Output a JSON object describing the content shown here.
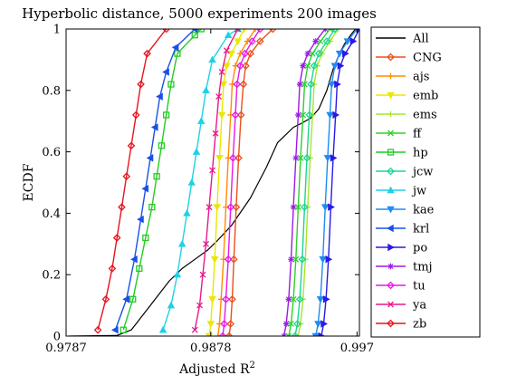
{
  "chart_data": {
    "type": "line",
    "title": "Hyperbolic distance, 5000 experiments 200 images",
    "xlabel_main": "Adjusted R",
    "xlabel_sup": "2",
    "ylabel": "ECDF",
    "xlim": [
      0.9787,
      0.99715
    ],
    "ylim": [
      0,
      1
    ],
    "grid": false,
    "legend_position": "right",
    "x_ticks": [
      {
        "value": 0.9787,
        "label": "0.9787"
      },
      {
        "value": 0.9878,
        "label": "0.9878"
      },
      {
        "value": 0.997,
        "label": "0.997"
      }
    ],
    "y_ticks": [
      {
        "value": 0,
        "label": "0"
      },
      {
        "value": 0.2,
        "label": "0.2"
      },
      {
        "value": 0.4,
        "label": "0.4"
      },
      {
        "value": 0.6,
        "label": "0.6"
      },
      {
        "value": 0.8,
        "label": "0.8"
      },
      {
        "value": 1,
        "label": "1"
      }
    ],
    "series": [
      {
        "name": "All",
        "color": "#000000",
        "marker": "none",
        "points": [
          [
            0.9789,
            0
          ],
          [
            0.9819,
            0.002
          ],
          [
            0.9828,
            0.02
          ],
          [
            0.9834,
            0.06
          ],
          [
            0.984,
            0.1
          ],
          [
            0.9846,
            0.14
          ],
          [
            0.9852,
            0.18
          ],
          [
            0.986,
            0.22
          ],
          [
            0.9868,
            0.25
          ],
          [
            0.9876,
            0.28
          ],
          [
            0.9882,
            0.31
          ],
          [
            0.9891,
            0.36
          ],
          [
            0.9903,
            0.45
          ],
          [
            0.9913,
            0.55
          ],
          [
            0.992,
            0.63
          ],
          [
            0.9926,
            0.66
          ],
          [
            0.993,
            0.68
          ],
          [
            0.9934,
            0.69
          ],
          [
            0.9941,
            0.71
          ],
          [
            0.9946,
            0.74
          ],
          [
            0.9951,
            0.8
          ],
          [
            0.9955,
            0.87
          ],
          [
            0.9959,
            0.92
          ],
          [
            0.9962,
            0.95
          ],
          [
            0.9966,
            0.98
          ],
          [
            0.9969,
            1.0
          ]
        ]
      },
      {
        "name": "CNG",
        "color": "#e8501c",
        "marker": "diamond",
        "points": [
          [
            0.98895,
            0
          ],
          [
            0.98905,
            0.04
          ],
          [
            0.98915,
            0.12
          ],
          [
            0.98925,
            0.25
          ],
          [
            0.9894,
            0.42
          ],
          [
            0.98955,
            0.58
          ],
          [
            0.9897,
            0.72
          ],
          [
            0.98985,
            0.82
          ],
          [
            0.99,
            0.88
          ],
          [
            0.9903,
            0.92
          ],
          [
            0.9909,
            0.96
          ],
          [
            0.9917,
            1.0
          ]
        ]
      },
      {
        "name": "ajs",
        "color": "#ff8c00",
        "marker": "plus",
        "points": [
          [
            0.98825,
            0
          ],
          [
            0.98835,
            0.04
          ],
          [
            0.98845,
            0.12
          ],
          [
            0.9886,
            0.25
          ],
          [
            0.98875,
            0.42
          ],
          [
            0.9889,
            0.58
          ],
          [
            0.98905,
            0.72
          ],
          [
            0.98915,
            0.82
          ],
          [
            0.98935,
            0.88
          ],
          [
            0.98965,
            0.92
          ],
          [
            0.9901,
            0.96
          ],
          [
            0.9906,
            1.0
          ]
        ]
      },
      {
        "name": "emb",
        "color": "#e8e800",
        "marker": "triangle-down",
        "points": [
          [
            0.9877,
            0
          ],
          [
            0.9878,
            0.04
          ],
          [
            0.9879,
            0.12
          ],
          [
            0.98805,
            0.25
          ],
          [
            0.9882,
            0.42
          ],
          [
            0.98835,
            0.58
          ],
          [
            0.9885,
            0.72
          ],
          [
            0.9886,
            0.82
          ],
          [
            0.9888,
            0.88
          ],
          [
            0.9891,
            0.92
          ],
          [
            0.9895,
            0.96
          ],
          [
            0.9899,
            1.0
          ]
        ]
      },
      {
        "name": "ems",
        "color": "#a8e62c",
        "marker": "plus",
        "points": [
          [
            0.9933,
            0
          ],
          [
            0.99345,
            0.04
          ],
          [
            0.9936,
            0.12
          ],
          [
            0.99375,
            0.25
          ],
          [
            0.9939,
            0.42
          ],
          [
            0.99405,
            0.58
          ],
          [
            0.9942,
            0.72
          ],
          [
            0.9943,
            0.82
          ],
          [
            0.9945,
            0.88
          ],
          [
            0.9948,
            0.92
          ],
          [
            0.9953,
            0.96
          ],
          [
            0.9958,
            1.0
          ]
        ]
      },
      {
        "name": "ff",
        "color": "#2ad22a",
        "marker": "x",
        "points": [
          [
            0.9927,
            0
          ],
          [
            0.99285,
            0.04
          ],
          [
            0.993,
            0.12
          ],
          [
            0.99315,
            0.25
          ],
          [
            0.9933,
            0.42
          ],
          [
            0.99345,
            0.58
          ],
          [
            0.9936,
            0.72
          ],
          [
            0.9937,
            0.82
          ],
          [
            0.9939,
            0.88
          ],
          [
            0.9942,
            0.92
          ],
          [
            0.9947,
            0.96
          ],
          [
            0.9953,
            1.0
          ]
        ]
      },
      {
        "name": "hp",
        "color": "#22cc22",
        "marker": "square",
        "points": [
          [
            0.9823,
            0.02
          ],
          [
            0.9829,
            0.12
          ],
          [
            0.9833,
            0.22
          ],
          [
            0.9837,
            0.32
          ],
          [
            0.9841,
            0.42
          ],
          [
            0.9844,
            0.52
          ],
          [
            0.9847,
            0.62
          ],
          [
            0.985,
            0.72
          ],
          [
            0.9853,
            0.82
          ],
          [
            0.9857,
            0.92
          ],
          [
            0.9868,
            0.98
          ],
          [
            0.9872,
            1.0
          ]
        ]
      },
      {
        "name": "jcw",
        "color": "#1ad690",
        "marker": "diamond",
        "points": [
          [
            0.9931,
            0
          ],
          [
            0.99325,
            0.04
          ],
          [
            0.9934,
            0.12
          ],
          [
            0.99355,
            0.25
          ],
          [
            0.9937,
            0.42
          ],
          [
            0.99385,
            0.58
          ],
          [
            0.994,
            0.72
          ],
          [
            0.9941,
            0.82
          ],
          [
            0.9943,
            0.88
          ],
          [
            0.9946,
            0.92
          ],
          [
            0.9951,
            0.96
          ],
          [
            0.9956,
            1.0
          ]
        ]
      },
      {
        "name": "jw",
        "color": "#1ed2e6",
        "marker": "triangle-up",
        "points": [
          [
            0.9848,
            0.02
          ],
          [
            0.9853,
            0.1
          ],
          [
            0.9857,
            0.2
          ],
          [
            0.986,
            0.3
          ],
          [
            0.9863,
            0.4
          ],
          [
            0.9866,
            0.5
          ],
          [
            0.9869,
            0.6
          ],
          [
            0.9872,
            0.7
          ],
          [
            0.9875,
            0.8
          ],
          [
            0.9879,
            0.9
          ],
          [
            0.9889,
            0.98
          ],
          [
            0.9895,
            1.0
          ]
        ]
      },
      {
        "name": "kae",
        "color": "#1e8cf0",
        "marker": "triangle-down",
        "points": [
          [
            0.9944,
            0
          ],
          [
            0.99455,
            0.04
          ],
          [
            0.9947,
            0.12
          ],
          [
            0.99485,
            0.25
          ],
          [
            0.995,
            0.42
          ],
          [
            0.99515,
            0.58
          ],
          [
            0.9953,
            0.72
          ],
          [
            0.9954,
            0.82
          ],
          [
            0.9956,
            0.88
          ],
          [
            0.9959,
            0.92
          ],
          [
            0.9964,
            0.96
          ],
          [
            0.997,
            1.0
          ]
        ]
      },
      {
        "name": "krl",
        "color": "#1a50e6",
        "marker": "triangle-left",
        "points": [
          [
            0.9818,
            0.02
          ],
          [
            0.9825,
            0.12
          ],
          [
            0.983,
            0.25
          ],
          [
            0.9834,
            0.38
          ],
          [
            0.9837,
            0.48
          ],
          [
            0.984,
            0.58
          ],
          [
            0.9843,
            0.68
          ],
          [
            0.9846,
            0.78
          ],
          [
            0.985,
            0.86
          ],
          [
            0.9856,
            0.94
          ],
          [
            0.9868,
            1.0
          ]
        ]
      },
      {
        "name": "po",
        "color": "#2a1ae6",
        "marker": "triangle-right",
        "points": [
          [
            0.99475,
            0
          ],
          [
            0.9949,
            0.04
          ],
          [
            0.99505,
            0.12
          ],
          [
            0.9952,
            0.25
          ],
          [
            0.99535,
            0.42
          ],
          [
            0.9955,
            0.58
          ],
          [
            0.99565,
            0.72
          ],
          [
            0.99575,
            0.82
          ],
          [
            0.99595,
            0.88
          ],
          [
            0.99625,
            0.92
          ],
          [
            0.99675,
            0.96
          ],
          [
            0.99715,
            1.0
          ]
        ]
      },
      {
        "name": "tmj",
        "color": "#9c1ae6",
        "marker": "star",
        "points": [
          [
            0.9924,
            0
          ],
          [
            0.99255,
            0.04
          ],
          [
            0.9927,
            0.12
          ],
          [
            0.99285,
            0.25
          ],
          [
            0.993,
            0.42
          ],
          [
            0.99315,
            0.58
          ],
          [
            0.9933,
            0.72
          ],
          [
            0.9934,
            0.82
          ],
          [
            0.9936,
            0.88
          ],
          [
            0.9939,
            0.92
          ],
          [
            0.9944,
            0.96
          ],
          [
            0.995,
            1.0
          ]
        ]
      },
      {
        "name": "tu",
        "color": "#e61ae6",
        "marker": "diamond",
        "points": [
          [
            0.98855,
            0
          ],
          [
            0.98865,
            0.04
          ],
          [
            0.98875,
            0.12
          ],
          [
            0.9889,
            0.25
          ],
          [
            0.98905,
            0.42
          ],
          [
            0.9892,
            0.58
          ],
          [
            0.98935,
            0.72
          ],
          [
            0.98945,
            0.82
          ],
          [
            0.98965,
            0.88
          ],
          [
            0.98995,
            0.92
          ],
          [
            0.9904,
            0.96
          ],
          [
            0.9909,
            1.0
          ]
        ]
      },
      {
        "name": "ya",
        "color": "#e61a8c",
        "marker": "x",
        "points": [
          [
            0.9868,
            0.02
          ],
          [
            0.9871,
            0.1
          ],
          [
            0.9873,
            0.2
          ],
          [
            0.9875,
            0.3
          ],
          [
            0.9877,
            0.42
          ],
          [
            0.9879,
            0.54
          ],
          [
            0.9881,
            0.66
          ],
          [
            0.9883,
            0.78
          ],
          [
            0.9885,
            0.86
          ],
          [
            0.9888,
            0.93
          ],
          [
            0.9895,
            1.0
          ]
        ]
      },
      {
        "name": "zb",
        "color": "#e6141e",
        "marker": "diamond",
        "points": [
          [
            0.9807,
            0.02
          ],
          [
            0.9812,
            0.12
          ],
          [
            0.9816,
            0.22
          ],
          [
            0.9819,
            0.32
          ],
          [
            0.9822,
            0.42
          ],
          [
            0.9825,
            0.52
          ],
          [
            0.9828,
            0.62
          ],
          [
            0.9831,
            0.72
          ],
          [
            0.9834,
            0.82
          ],
          [
            0.9838,
            0.92
          ],
          [
            0.985,
            1.0
          ]
        ]
      }
    ]
  }
}
